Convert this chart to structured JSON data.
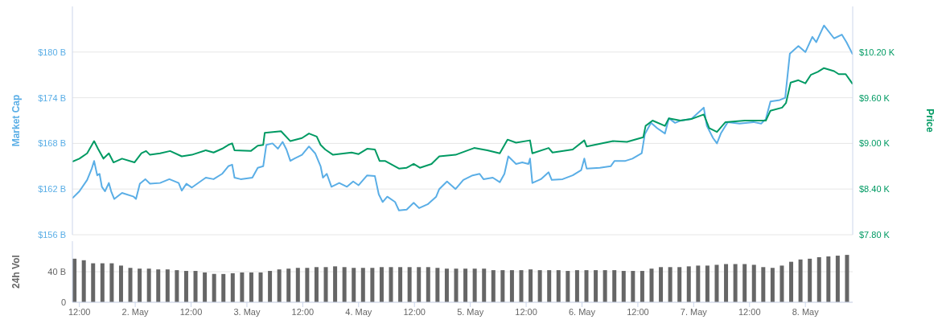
{
  "chart_data": [
    {
      "type": "line",
      "ylabel": "Market Cap",
      "y2label": "Price",
      "xlim": [
        "--05-01T10:30",
        "--05-08T10:10"
      ],
      "ylim": [
        156,
        186
      ],
      "yticks": [
        {
          "value": 156,
          "label": "$156 B"
        },
        {
          "value": 162,
          "label": "$162 B"
        },
        {
          "value": 168,
          "label": "$168 B"
        },
        {
          "value": 174,
          "label": "$174 B"
        },
        {
          "value": 180,
          "label": "$180 B"
        }
      ],
      "y2lim": [
        7800,
        10800
      ],
      "y2ticks": [
        {
          "value": 7800,
          "label": "$7.80 K"
        },
        {
          "value": 8400,
          "label": "$8.40 K"
        },
        {
          "value": 9000,
          "label": "$9.00 K"
        },
        {
          "value": 9600,
          "label": "$9.60 K"
        },
        {
          "value": 10200,
          "label": "$10.20 K"
        }
      ],
      "grid": "y",
      "tick_labels": "y",
      "series": [
        {
          "color": "#5aaee6",
          "x": [
            "--05-01T10:30",
            "--05-01T12:00",
            "--05-01T13:40",
            "--05-01T14:40",
            "--05-01T15:10",
            "--05-01T15:50",
            "--05-01T16:20",
            "--05-01T16:50",
            "--05-01T17:30",
            "--05-01T18:20",
            "--05-01T18:50",
            "--05-01T19:30",
            "--05-01T21:10",
            "--05-01T23:40",
            "--05-02T00:10",
            "--05-02T01:00",
            "--05-02T02:10",
            "--05-02T03:10",
            "--05-02T05:20",
            "--05-02T07:20",
            "--05-02T09:20",
            "--05-02T10:00",
            "--05-02T11:00",
            "--05-02T12:10",
            "--05-02T15:10",
            "--05-02T16:50",
            "--05-02T18:40",
            "--05-02T20:00",
            "--05-02T20:50",
            "--05-02T21:20",
            "--05-02T22:40",
            "--05-03T01:10",
            "--05-03T02:20",
            "--05-03T03:30",
            "--05-03T04:10",
            "--05-03T05:30",
            "--05-03T06:40",
            "--05-03T07:40",
            "--05-03T08:30",
            "--05-03T09:20",
            "--05-03T10:10",
            "--05-03T11:50",
            "--05-03T13:20",
            "--05-03T14:40",
            "--05-03T15:50",
            "--05-03T16:20",
            "--05-03T17:10",
            "--05-03T18:10",
            "--05-03T19:50",
            "--05-03T21:30",
            "--05-03T22:50",
            "--05-04T00:00",
            "--05-04T01:50",
            "--05-04T03:30",
            "--05-04T04:20",
            "--05-04T05:10",
            "--05-04T06:10",
            "--05-04T07:50",
            "--05-04T08:40",
            "--05-04T10:20",
            "--05-04T11:50",
            "--05-04T13:00",
            "--05-04T14:50",
            "--05-04T16:40",
            "--05-04T17:20",
            "--05-04T19:00",
            "--05-04T20:50",
            "--05-04T22:30",
            "--05-05T00:30",
            "--05-05T02:00",
            "--05-05T02:50",
            "--05-05T04:50",
            "--05-05T06:20",
            "--05-05T07:20",
            "--05-05T08:10",
            "--05-05T09:50",
            "--05-05T11:10",
            "--05-05T12:30",
            "--05-05T12:50",
            "--05-05T13:20",
            "--05-05T15:10",
            "--05-05T16:50",
            "--05-05T17:30",
            "--05-05T19:50",
            "--05-05T22:00",
            "--05-05T23:50",
            "--05-06T00:30",
            "--05-06T01:00",
            "--05-06T03:50",
            "--05-06T06:10",
            "--05-06T07:00",
            "--05-06T09:20",
            "--05-06T10:50",
            "--05-06T12:50",
            "--05-06T13:30",
            "--05-06T14:50",
            "--05-06T16:10",
            "--05-06T17:50",
            "--05-06T18:40",
            "--05-06T20:00",
            "--05-06T21:10",
            "--05-06T23:30",
            "--05-07T02:10",
            "--05-07T02:50",
            "--05-07T04:10",
            "--05-07T05:00",
            "--05-07T05:50",
            "--05-07T07:20",
            "--05-07T09:50",
            "--05-07T12:50",
            "--05-07T14:30",
            "--05-07T15:30",
            "--05-07T16:30",
            "--05-07T18:30",
            "--05-07T19:40",
            "--05-07T20:40",
            "--05-07T22:30",
            "--05-08T00:00",
            "--05-08T01:30",
            "--05-08T02:20",
            "--05-08T04:00",
            "--05-08T06:10",
            "--05-08T07:50",
            "--05-08T08:50",
            "--05-08T10:10"
          ],
          "values": [
            160.8,
            161.7,
            163.2,
            164.7,
            165.7,
            163.8,
            164,
            162.3,
            161.7,
            162.8,
            161.7,
            160.7,
            161.5,
            161,
            160.7,
            162.7,
            163.3,
            162.7,
            162.8,
            163.3,
            162.8,
            161.8,
            162.7,
            162.2,
            163.5,
            163.3,
            164,
            165,
            165.2,
            163.5,
            163.3,
            163.5,
            164.8,
            165,
            167.8,
            168,
            167.3,
            168.2,
            167.2,
            165.7,
            166,
            166.5,
            167.6,
            166.7,
            165,
            163.5,
            164,
            162.3,
            162.8,
            162.3,
            163,
            162.5,
            163.8,
            163.7,
            161.3,
            160.3,
            161,
            160.3,
            159.2,
            159.3,
            160.2,
            159.5,
            160,
            161,
            162,
            163,
            162,
            163.2,
            163.8,
            164,
            163.3,
            163.5,
            162.9,
            164,
            166.3,
            165.3,
            165.5,
            165.3,
            166,
            162.8,
            163.3,
            164.2,
            163.2,
            163.3,
            163.8,
            164.5,
            166,
            164.7,
            164.8,
            165,
            165.7,
            165.7,
            166,
            166.7,
            169.2,
            170.7,
            170,
            169.3,
            171.3,
            170.7,
            171,
            171.2,
            172.7,
            170.3,
            168.7,
            168,
            169.3,
            170.8,
            170.6,
            170.8,
            170.6,
            171.2,
            173.5,
            173.7,
            174,
            179.8,
            180.8,
            180,
            182,
            181.3,
            183.5,
            181.8,
            182.3,
            181.3,
            179.7
          ]
        },
        {
          "color": "#009a63",
          "axis": "y2",
          "x": [
            "--05-01T10:30",
            "--05-01T12:00",
            "--05-01T13:40",
            "--05-01T15:10",
            "--05-01T16:00",
            "--05-01T17:10",
            "--05-01T18:20",
            "--05-01T19:20",
            "--05-01T21:10",
            "--05-01T23:50",
            "--05-02T01:20",
            "--05-02T02:20",
            "--05-02T03:10",
            "--05-02T05:20",
            "--05-02T07:30",
            "--05-02T10:00",
            "--05-02T12:10",
            "--05-02T15:10",
            "--05-02T16:50",
            "--05-02T18:40",
            "--05-02T20:00",
            "--05-02T20:50",
            "--05-02T21:20",
            "--05-03T00:50",
            "--05-03T02:20",
            "--05-03T03:30",
            "--05-03T03:50",
            "--05-03T07:20",
            "--05-03T09:20",
            "--05-03T11:50",
            "--05-03T13:20",
            "--05-03T15:00",
            "--05-03T15:50",
            "--05-03T16:50",
            "--05-03T18:30",
            "--05-03T22:30",
            "--05-04T00:00",
            "--05-04T01:50",
            "--05-04T03:30",
            "--05-04T04:30",
            "--05-04T05:40",
            "--05-04T08:40",
            "--05-04T10:20",
            "--05-04T11:50",
            "--05-04T13:10",
            "--05-04T15:40",
            "--05-04T17:20",
            "--05-04T20:50",
            "--05-05T00:50",
            "--05-05T03:40",
            "--05-05T06:20",
            "--05-05T08:00",
            "--05-05T09:50",
            "--05-05T12:50",
            "--05-05T13:20",
            "--05-05T16:50",
            "--05-05T17:40",
            "--05-05T22:00",
            "--05-06T00:30",
            "--05-06T01:00",
            "--05-06T06:40",
            "--05-06T09:40",
            "--05-06T13:10",
            "--05-06T13:40",
            "--05-06T15:10",
            "--05-06T17:50",
            "--05-06T18:40",
            "--05-06T21:10",
            "--05-06T23:30",
            "--05-07T02:10",
            "--05-07T03:20",
            "--05-07T05:00",
            "--05-07T06:50",
            "--05-07T11:00",
            "--05-07T15:30",
            "--05-07T16:30",
            "--05-07T19:00",
            "--05-07T19:50",
            "--05-07T20:50",
            "--05-07T22:30",
            "--05-08T00:00",
            "--05-08T01:10",
            "--05-08T02:40",
            "--05-08T04:00",
            "--05-08T06:10",
            "--05-08T07:10",
            "--05-08T08:40",
            "--05-08T10:10"
          ],
          "values": [
            8760,
            8800,
            8870,
            9030,
            8930,
            8800,
            8870,
            8750,
            8800,
            8750,
            8870,
            8900,
            8850,
            8870,
            8900,
            8830,
            8850,
            8910,
            8880,
            8930,
            8980,
            9000,
            8910,
            8900,
            8970,
            8980,
            9140,
            9160,
            9030,
            9070,
            9130,
            9090,
            8980,
            8920,
            8850,
            8880,
            8860,
            8930,
            8920,
            8770,
            8770,
            8670,
            8680,
            8730,
            8680,
            8730,
            8830,
            8850,
            8940,
            8910,
            8870,
            9050,
            9010,
            9040,
            8870,
            8940,
            8880,
            8920,
            9040,
            8960,
            9030,
            9020,
            9080,
            9230,
            9300,
            9230,
            9330,
            9300,
            9320,
            9380,
            9200,
            9150,
            9280,
            9300,
            9300,
            9430,
            9470,
            9530,
            9800,
            9830,
            9790,
            9900,
            9940,
            9990,
            9950,
            9910,
            9910,
            9780
          ]
        }
      ]
    },
    {
      "type": "bar",
      "ylabel": "24h Vol",
      "xlim": [
        "--05-01T10:30",
        "--05-08T10:10"
      ],
      "xticks": [
        {
          "value": "--05-01T12:00",
          "label": "12:00"
        },
        {
          "value": "--05-02T00:00",
          "label": "2. May"
        },
        {
          "value": "--05-02T12:00",
          "label": "12:00"
        },
        {
          "value": "--05-03T00:00",
          "label": "3. May"
        },
        {
          "value": "--05-03T12:00",
          "label": "12:00"
        },
        {
          "value": "--05-04T00:00",
          "label": "4. May"
        },
        {
          "value": "--05-04T12:00",
          "label": "12:00"
        },
        {
          "value": "--05-05T00:00",
          "label": "5. May"
        },
        {
          "value": "--05-05T12:00",
          "label": "12:00"
        },
        {
          "value": "--05-06T00:00",
          "label": "6. May"
        },
        {
          "value": "--05-06T12:00",
          "label": "12:00"
        },
        {
          "value": "--05-07T00:00",
          "label": "7. May"
        },
        {
          "value": "--05-07T12:00",
          "label": "12:00"
        },
        {
          "value": "--05-08T00:00",
          "label": "8. May"
        }
      ],
      "ylim": [
        0,
        80
      ],
      "yticks": [
        0,
        {
          "value": 40,
          "label": "40 B"
        }
      ],
      "grid": "y",
      "series": [
        {
          "color": "#666666",
          "x": [
            "--05-01T11:00",
            "--05-01T13:00",
            "--05-01T15:00",
            "--05-01T17:00",
            "--05-01T19:00",
            "--05-01T21:00",
            "--05-01T23:00",
            "--05-02T01:00",
            "--05-02T03:00",
            "--05-02T05:00",
            "--05-02T07:00",
            "--05-02T09:00",
            "--05-02T11:00",
            "--05-02T13:00",
            "--05-02T15:00",
            "--05-02T17:00",
            "--05-02T19:00",
            "--05-02T21:00",
            "--05-02T23:00",
            "--05-03T01:00",
            "--05-03T03:00",
            "--05-03T05:00",
            "--05-03T07:00",
            "--05-03T09:00",
            "--05-03T11:00",
            "--05-03T13:00",
            "--05-03T15:00",
            "--05-03T17:00",
            "--05-03T19:00",
            "--05-03T21:00",
            "--05-03T23:00",
            "--05-04T01:00",
            "--05-04T03:00",
            "--05-04T05:00",
            "--05-04T07:00",
            "--05-04T09:00",
            "--05-04T11:00",
            "--05-04T13:00",
            "--05-04T15:00",
            "--05-04T17:00",
            "--05-04T19:00",
            "--05-04T21:00",
            "--05-04T23:00",
            "--05-05T01:00",
            "--05-05T03:00",
            "--05-05T05:00",
            "--05-05T07:00",
            "--05-05T09:00",
            "--05-05T11:00",
            "--05-05T13:00",
            "--05-05T15:00",
            "--05-05T17:00",
            "--05-05T19:00",
            "--05-05T21:00",
            "--05-05T23:00",
            "--05-06T01:00",
            "--05-06T03:00",
            "--05-06T05:00",
            "--05-06T07:00",
            "--05-06T09:00",
            "--05-06T11:00",
            "--05-06T13:00",
            "--05-06T15:00",
            "--05-06T17:00",
            "--05-06T19:00",
            "--05-06T21:00",
            "--05-06T23:00",
            "--05-07T01:00",
            "--05-07T03:00",
            "--05-07T05:00",
            "--05-07T07:00",
            "--05-07T09:00",
            "--05-07T11:00",
            "--05-07T13:00",
            "--05-07T15:00",
            "--05-07T17:00",
            "--05-07T19:00",
            "--05-07T21:00",
            "--05-07T23:00",
            "--05-08T01:00",
            "--05-08T03:00",
            "--05-08T05:00",
            "--05-08T07:00",
            "--05-08T09:00"
          ],
          "values": [
            57,
            55,
            51,
            51,
            51,
            48,
            45,
            44,
            44,
            43,
            43,
            42,
            41,
            41,
            39,
            37,
            37,
            38,
            39,
            39,
            39,
            41,
            43,
            44,
            45,
            45,
            46,
            46,
            47,
            46,
            45,
            45,
            45,
            46,
            46,
            46,
            46,
            46,
            46,
            45,
            44,
            44,
            44,
            44,
            44,
            42,
            42,
            42,
            42,
            43,
            42,
            42,
            42,
            41,
            42,
            42,
            42,
            42,
            42,
            41,
            41,
            41,
            44,
            46,
            46,
            46,
            47,
            48,
            48,
            49,
            50,
            50,
            50,
            49,
            46,
            45,
            48,
            53,
            56,
            57,
            59,
            60,
            61,
            62
          ]
        }
      ]
    }
  ]
}
